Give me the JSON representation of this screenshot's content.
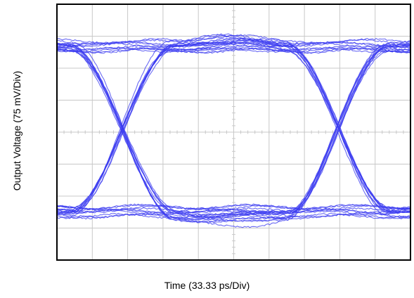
{
  "chart_data": {
    "type": "eye-diagram",
    "xlabel": "Time (33.33 ps/Div)",
    "ylabel": "Output Voltage (75 mV/Div)",
    "x_divisions": 10,
    "y_divisions": 8,
    "grid": true,
    "legend": "none",
    "trace_color": "#3b3bf0",
    "frame_color": "#000000",
    "grid_color": "#c8c8c8",
    "series": [
      {
        "bit_transitions": [
          [
            "high",
            "high"
          ],
          [
            "high",
            "low"
          ],
          [
            "low",
            "high"
          ],
          [
            "low",
            "low"
          ]
        ],
        "crossing_points_div": [
          1.85,
          7.95
        ],
        "high_level_div": 2.7,
        "low_level_div": -2.5,
        "trace_count": 10
      }
    ]
  }
}
